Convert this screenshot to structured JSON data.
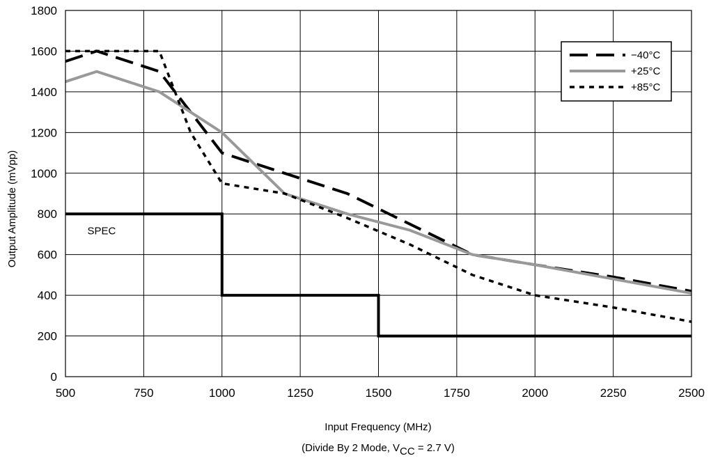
{
  "chart_data": {
    "type": "line",
    "xlabel": "Input Frequency (MHz)",
    "subcaption": {
      "prefix": "(Divide By 2 Mode, V",
      "subscript": "CC",
      "suffix": " = 2.7 V)"
    },
    "ylabel": "Output Amplitude (mVpp)",
    "xlim": [
      500,
      2500
    ],
    "ylim": [
      0,
      1800
    ],
    "xticks": [
      500,
      750,
      1000,
      1250,
      1500,
      1750,
      2000,
      2250,
      2500
    ],
    "yticks": [
      0,
      200,
      400,
      600,
      800,
      1000,
      1200,
      1400,
      1600,
      1800
    ],
    "grid": true,
    "legend_position": "top-right",
    "series": [
      {
        "name": "−40°C",
        "style": "long-dash",
        "color": "#000000",
        "x": [
          500,
          600,
          800,
          1000,
          1200,
          1400,
          1600,
          1800,
          2000,
          2250,
          2500
        ],
        "y": [
          1550,
          1600,
          1500,
          1100,
          1000,
          900,
          750,
          600,
          550,
          490,
          420
        ]
      },
      {
        "name": "+25°C",
        "style": "solid",
        "color": "#999999",
        "x": [
          500,
          600,
          800,
          1000,
          1200,
          1400,
          1600,
          1800,
          2000,
          2250,
          2500
        ],
        "y": [
          1450,
          1500,
          1400,
          1200,
          900,
          800,
          720,
          600,
          550,
          480,
          410
        ]
      },
      {
        "name": "+85°C",
        "style": "short-dash",
        "color": "#000000",
        "x": [
          500,
          600,
          800,
          850,
          900,
          1000,
          1200,
          1400,
          1600,
          1800,
          2000,
          2250,
          2500
        ],
        "y": [
          1600,
          1600,
          1600,
          1400,
          1200,
          950,
          900,
          780,
          650,
          500,
          400,
          340,
          270
        ]
      },
      {
        "name": "SPEC",
        "style": "step",
        "color": "#000000",
        "x": [
          500,
          1000,
          1000,
          1500,
          1500,
          2500
        ],
        "y": [
          800,
          800,
          400,
          400,
          200,
          200
        ]
      }
    ],
    "annotations": [
      {
        "text": "SPEC",
        "x": 570,
        "y": 700
      }
    ]
  }
}
